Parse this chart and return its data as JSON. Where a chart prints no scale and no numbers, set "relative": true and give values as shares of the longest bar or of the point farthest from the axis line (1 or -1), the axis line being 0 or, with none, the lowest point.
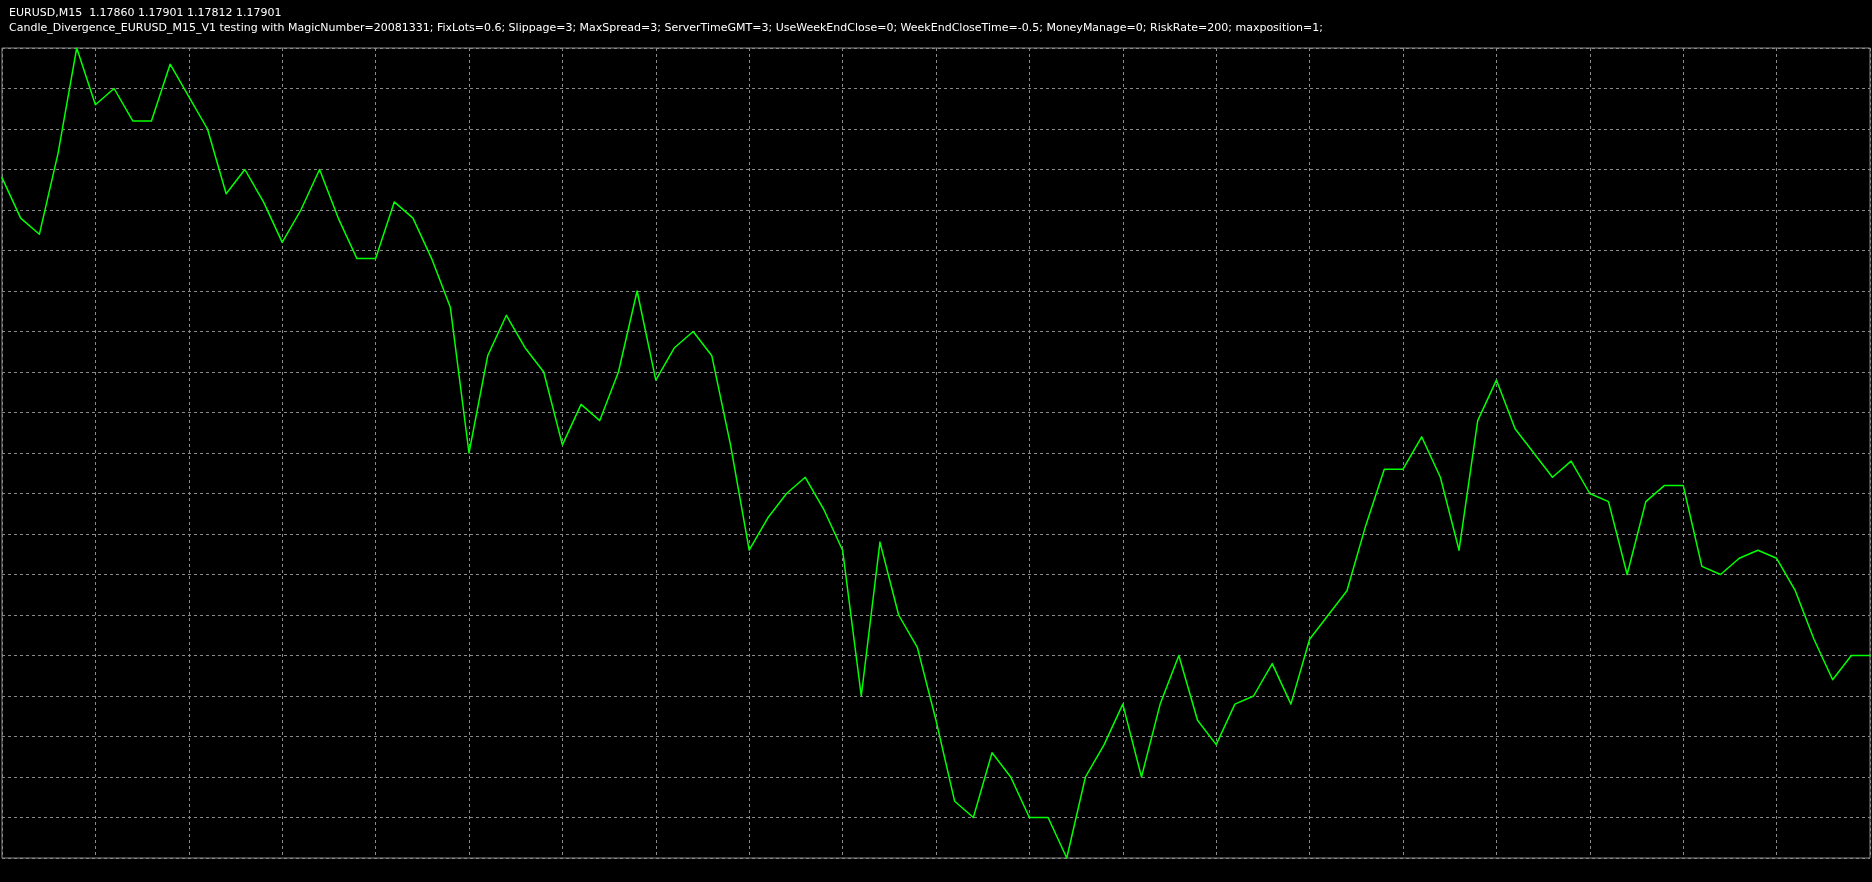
{
  "chart_data": {
    "type": "line",
    "title": "EURUSD,M15  1.17860 1.17901 1.17812 1.17901",
    "subtitle": "Candle_Divergence_EURUSD_M15_V1 testing with MagicNumber=20081331; FixLots=0.6; Slippage=3; MaxSpread=3; ServerTimeGMT=3; UseWeekEndClose=0; WeekEndCloseTime=-0.5; MoneyManage=0; RiskRate=200; maxposition=1;",
    "relative": true,
    "grid": true,
    "marker": "none",
    "line_style": "solid",
    "tick_labels": false,
    "categories": [
      null,
      null,
      null,
      null,
      null,
      null,
      null,
      null,
      null,
      null,
      null,
      null,
      null,
      null,
      null,
      null,
      null,
      null,
      null,
      null,
      null,
      null,
      null,
      null,
      null,
      null,
      null,
      null,
      null,
      null,
      null,
      null,
      null,
      null,
      null,
      null,
      null,
      null,
      null,
      null,
      null,
      null,
      null,
      null,
      null,
      null,
      null,
      null,
      null,
      null,
      null,
      null,
      null,
      null,
      null,
      null,
      null,
      null,
      null,
      null,
      null,
      null,
      null,
      null,
      null,
      null,
      null,
      null,
      null,
      null,
      null,
      null,
      null,
      null,
      null,
      null,
      null,
      null,
      null,
      null,
      null,
      null,
      null,
      null,
      null,
      null,
      null,
      null,
      null,
      null,
      null,
      null,
      null,
      null,
      null,
      null,
      null,
      null,
      null,
      null,
      null
    ],
    "series": [
      {
        "color": "#00ff00",
        "values": [
          0.84,
          0.79,
          0.77,
          0.87,
          1,
          0.93,
          0.95,
          0.91,
          0.91,
          0.98,
          0.94,
          0.9,
          0.82,
          0.85,
          0.81,
          0.76,
          0.8,
          0.85,
          0.79,
          0.74,
          0.74,
          0.81,
          0.79,
          0.74,
          0.68,
          0.5,
          0.62,
          0.67,
          0.63,
          0.6,
          0.51,
          0.56,
          0.54,
          0.6,
          0.7,
          0.59,
          0.63,
          0.65,
          0.62,
          0.51,
          0.38,
          0.42,
          0.45,
          0.47,
          0.43,
          0.38,
          0.2,
          0.39,
          0.3,
          0.26,
          0.17,
          0.07,
          0.05,
          0.13,
          0.1,
          0.05,
          0.05,
          0,
          0.1,
          0.14,
          0.19,
          0.1,
          0.19,
          0.25,
          0.17,
          0.14,
          0.19,
          0.2,
          0.24,
          0.19,
          0.27,
          0.3,
          0.33,
          0.41,
          0.48,
          0.48,
          0.52,
          0.47,
          0.38,
          0.54,
          0.59,
          0.53,
          0.5,
          0.47,
          0.49,
          0.45,
          0.44,
          0.35,
          0.44,
          0.46,
          0.46,
          0.36,
          0.35,
          0.37,
          0.38,
          0.37,
          0.33,
          0.27,
          0.22,
          0.25,
          0.25
        ]
      }
    ]
  }
}
